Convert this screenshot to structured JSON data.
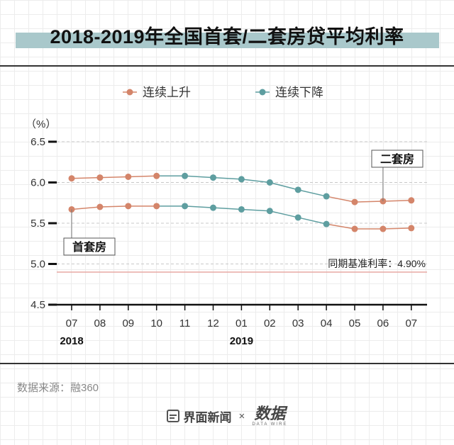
{
  "title": "2018-2019年全国首套/二套房贷平均利率",
  "source": "数据来源：融360",
  "footer": {
    "brand_left": "界面新闻",
    "times": "×",
    "brand_right": "数据",
    "brand_right_sub": "DATA WIRE"
  },
  "colors": {
    "first_home": "#d4856a",
    "second_home": "#5e9ea0",
    "reference_line": "#e8a8a4",
    "title_band": "#a9c8cb"
  },
  "chart_data": {
    "type": "line",
    "unit_label": "（%）",
    "categories": [
      "07",
      "08",
      "09",
      "10",
      "11",
      "12",
      "01",
      "02",
      "03",
      "04",
      "05",
      "06",
      "07"
    ],
    "year_labels": [
      {
        "label": "2018",
        "at_index": 0
      },
      {
        "label": "2019",
        "at_index": 6
      }
    ],
    "ylim": [
      4.5,
      6.5
    ],
    "yticks": [
      "6.5",
      "6.0",
      "5.5",
      "5.0",
      "4.5"
    ],
    "legend": [
      {
        "label": "连续上升",
        "color": "#d4856a"
      },
      {
        "label": "连续下降",
        "color": "#5e9ea0"
      }
    ],
    "series": [
      {
        "name": "二套房",
        "values": [
          6.05,
          6.06,
          6.07,
          6.08,
          6.08,
          6.06,
          6.04,
          6.0,
          5.91,
          5.83,
          5.76,
          5.77,
          5.78
        ],
        "point_colors": [
          "#d4856a",
          "#d4856a",
          "#d4856a",
          "#d4856a",
          "#5e9ea0",
          "#5e9ea0",
          "#5e9ea0",
          "#5e9ea0",
          "#5e9ea0",
          "#5e9ea0",
          "#d4856a",
          "#d4856a",
          "#d4856a"
        ]
      },
      {
        "name": "首套房",
        "values": [
          5.67,
          5.7,
          5.71,
          5.71,
          5.71,
          5.69,
          5.67,
          5.65,
          5.57,
          5.49,
          5.43,
          5.43,
          5.44
        ],
        "point_colors": [
          "#d4856a",
          "#d4856a",
          "#d4856a",
          "#d4856a",
          "#5e9ea0",
          "#5e9ea0",
          "#5e9ea0",
          "#5e9ea0",
          "#5e9ea0",
          "#5e9ea0",
          "#d4856a",
          "#d4856a",
          "#d4856a"
        ]
      }
    ],
    "reference": {
      "value": 4.9,
      "label": "同期基准利率：4.90%"
    },
    "grid": true
  }
}
